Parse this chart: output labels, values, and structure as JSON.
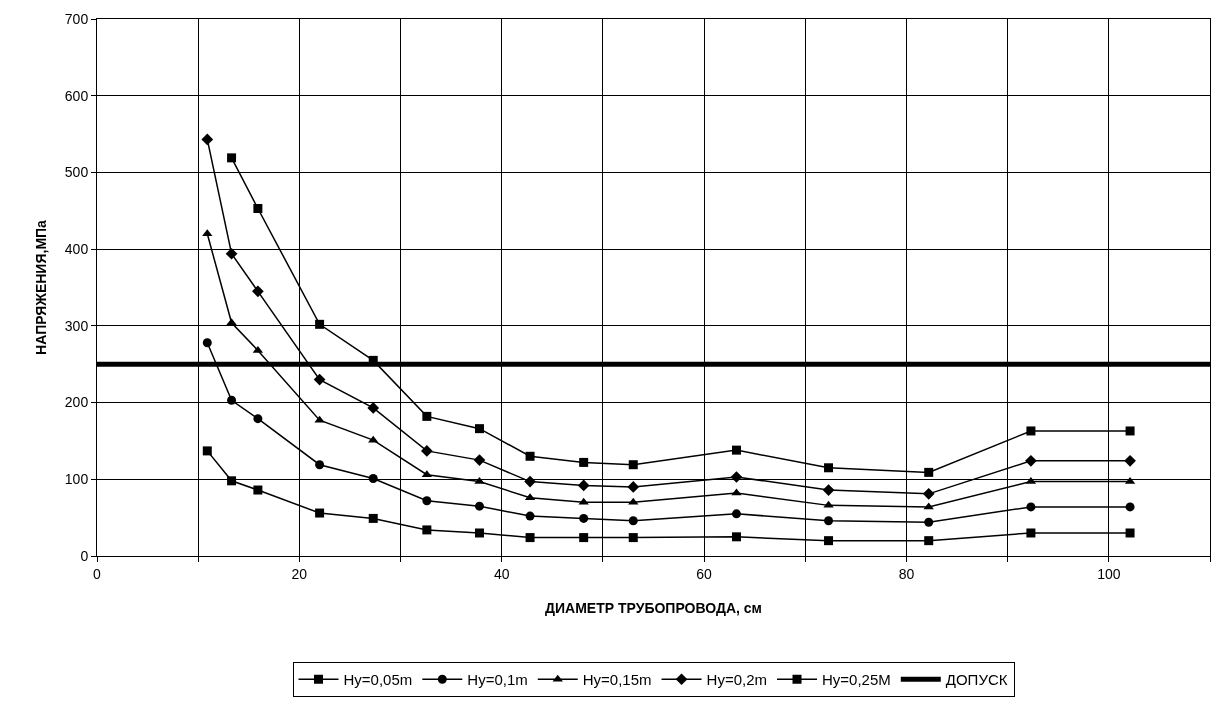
{
  "chart_data": {
    "type": "line",
    "xlabel": "ДИАМЕТР ТРУБОПРОВОДА, см",
    "ylabel": "НАПРЯЖЕНИЯ,МПа",
    "x": [
      10.9,
      13.3,
      15.9,
      22,
      27.3,
      32.6,
      37.8,
      42.8,
      48.1,
      53,
      63.2,
      72.3,
      82.2,
      92.3,
      102.1
    ],
    "series": [
      {
        "name": "Hy=0,05m",
        "color": "#000000",
        "marker": "square",
        "values": [
          137,
          98,
          86,
          56,
          49,
          34,
          30,
          24,
          24,
          24,
          25,
          20,
          20,
          30,
          30
        ]
      },
      {
        "name": "Hy=0,1m",
        "color": "#000000",
        "marker": "circle",
        "values": [
          278,
          203,
          179,
          119,
          101,
          72,
          65,
          52,
          49,
          46,
          55,
          46,
          44,
          64,
          64
        ]
      },
      {
        "name": "Hy=0,15m",
        "color": "#000000",
        "marker": "triangle",
        "values": [
          420,
          304,
          268,
          177,
          151,
          106,
          97,
          76,
          70,
          70,
          82,
          66,
          64,
          97,
          97
        ]
      },
      {
        "name": "Hy=0,2m",
        "color": "#000000",
        "marker": "diamond",
        "values": [
          543,
          394,
          345,
          230,
          193,
          137,
          125,
          97,
          92,
          90,
          103,
          86,
          81,
          124,
          124
        ]
      },
      {
        "name": "Hy=0,25M",
        "color": "#000000",
        "marker": "square",
        "values": [
          null,
          519,
          453,
          302,
          255,
          182,
          166,
          130,
          122,
          119,
          138,
          115,
          109,
          163,
          163
        ]
      }
    ],
    "ref_lines": [
      {
        "axis": "y",
        "value": 250,
        "label": "ДОПУСК",
        "color": "#000000"
      }
    ],
    "xlim": [
      0,
      110
    ],
    "xticks": [
      0,
      {
        "value": 10,
        "label": null
      },
      20,
      {
        "value": 30,
        "label": null
      },
      40,
      {
        "value": 50,
        "label": null
      },
      60,
      {
        "value": 70,
        "label": null
      },
      80,
      {
        "value": 90,
        "label": null
      },
      100,
      {
        "value": 110,
        "label": null
      }
    ],
    "ylim": [
      0,
      700
    ],
    "yticks": [
      0,
      100,
      200,
      300,
      400,
      500,
      600,
      700
    ],
    "grid": true,
    "legend": "bottom",
    "line_style": "solid"
  }
}
